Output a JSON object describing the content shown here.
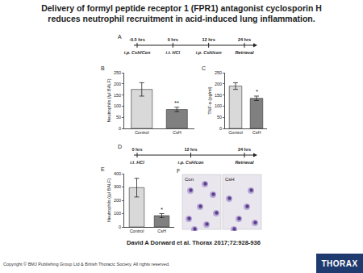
{
  "title": "Delivery of formyl peptide receptor 1 (FPR1) antagonist cyclosporin H reduces neutrophil recruitment in acid-induced lung inflammation.",
  "timelines": [
    {
      "label": "A",
      "times": [
        "-0.5 hrs",
        "0 hrs",
        "12 hrs",
        "24 hrs"
      ],
      "events": [
        "i.p. CsH/Con",
        "i.t. HCl",
        "i.p. CsH/con",
        "Retrieval"
      ]
    },
    {
      "label": "D",
      "times": [
        "0 hrs",
        "12 hrs",
        "24 hrs"
      ],
      "events": [
        "i.t. HCl",
        "i.p. CsH/con",
        "Retrieval"
      ]
    }
  ],
  "chart_data": [
    {
      "type": "bar",
      "title": "B",
      "y_label": "Neutrophils (/µl BALF)",
      "categories": [
        "Control",
        "CsH"
      ],
      "values": [
        175,
        85
      ],
      "errors": [
        30,
        10
      ],
      "colors": [
        "#d9d9d9",
        "#808080"
      ],
      "ylim": [
        0,
        250
      ],
      "yticks": [
        0,
        50,
        100,
        150,
        200,
        250
      ],
      "annotations": [
        {
          "category": "CsH",
          "text": "**"
        }
      ]
    },
    {
      "type": "bar",
      "title": "C",
      "y_label": "TNF-α (pg/ml)",
      "categories": [
        "Control",
        "CsH"
      ],
      "values": [
        190,
        135
      ],
      "errors": [
        15,
        10
      ],
      "colors": [
        "#d9d9d9",
        "#808080"
      ],
      "ylim": [
        0,
        250
      ],
      "yticks": [
        0,
        50,
        100,
        150,
        200,
        250
      ],
      "annotations": [
        {
          "category": "CsH",
          "text": "*"
        }
      ]
    },
    {
      "type": "bar",
      "title": "E",
      "y_label": "Neutrophils (/µl BALF)",
      "categories": [
        "Control",
        "CsH"
      ],
      "values": [
        295,
        85
      ],
      "errors": [
        70,
        15
      ],
      "colors": [
        "#d9d9d9",
        "#808080"
      ],
      "ylim": [
        0,
        400
      ],
      "yticks": [
        0,
        100,
        200,
        300,
        400
      ],
      "annotations": [
        {
          "category": "CsH",
          "text": "*"
        }
      ]
    }
  ],
  "micrograph": {
    "label": "F",
    "panels": [
      "Con",
      "CsH"
    ]
  },
  "caption": "David A Dorward et al. Thorax 2017;72:928-936",
  "copyright": "Copyright © BMJ Publishing Group Ltd & British Thoracic Society. All rights reserved.",
  "logo": "THORAX"
}
